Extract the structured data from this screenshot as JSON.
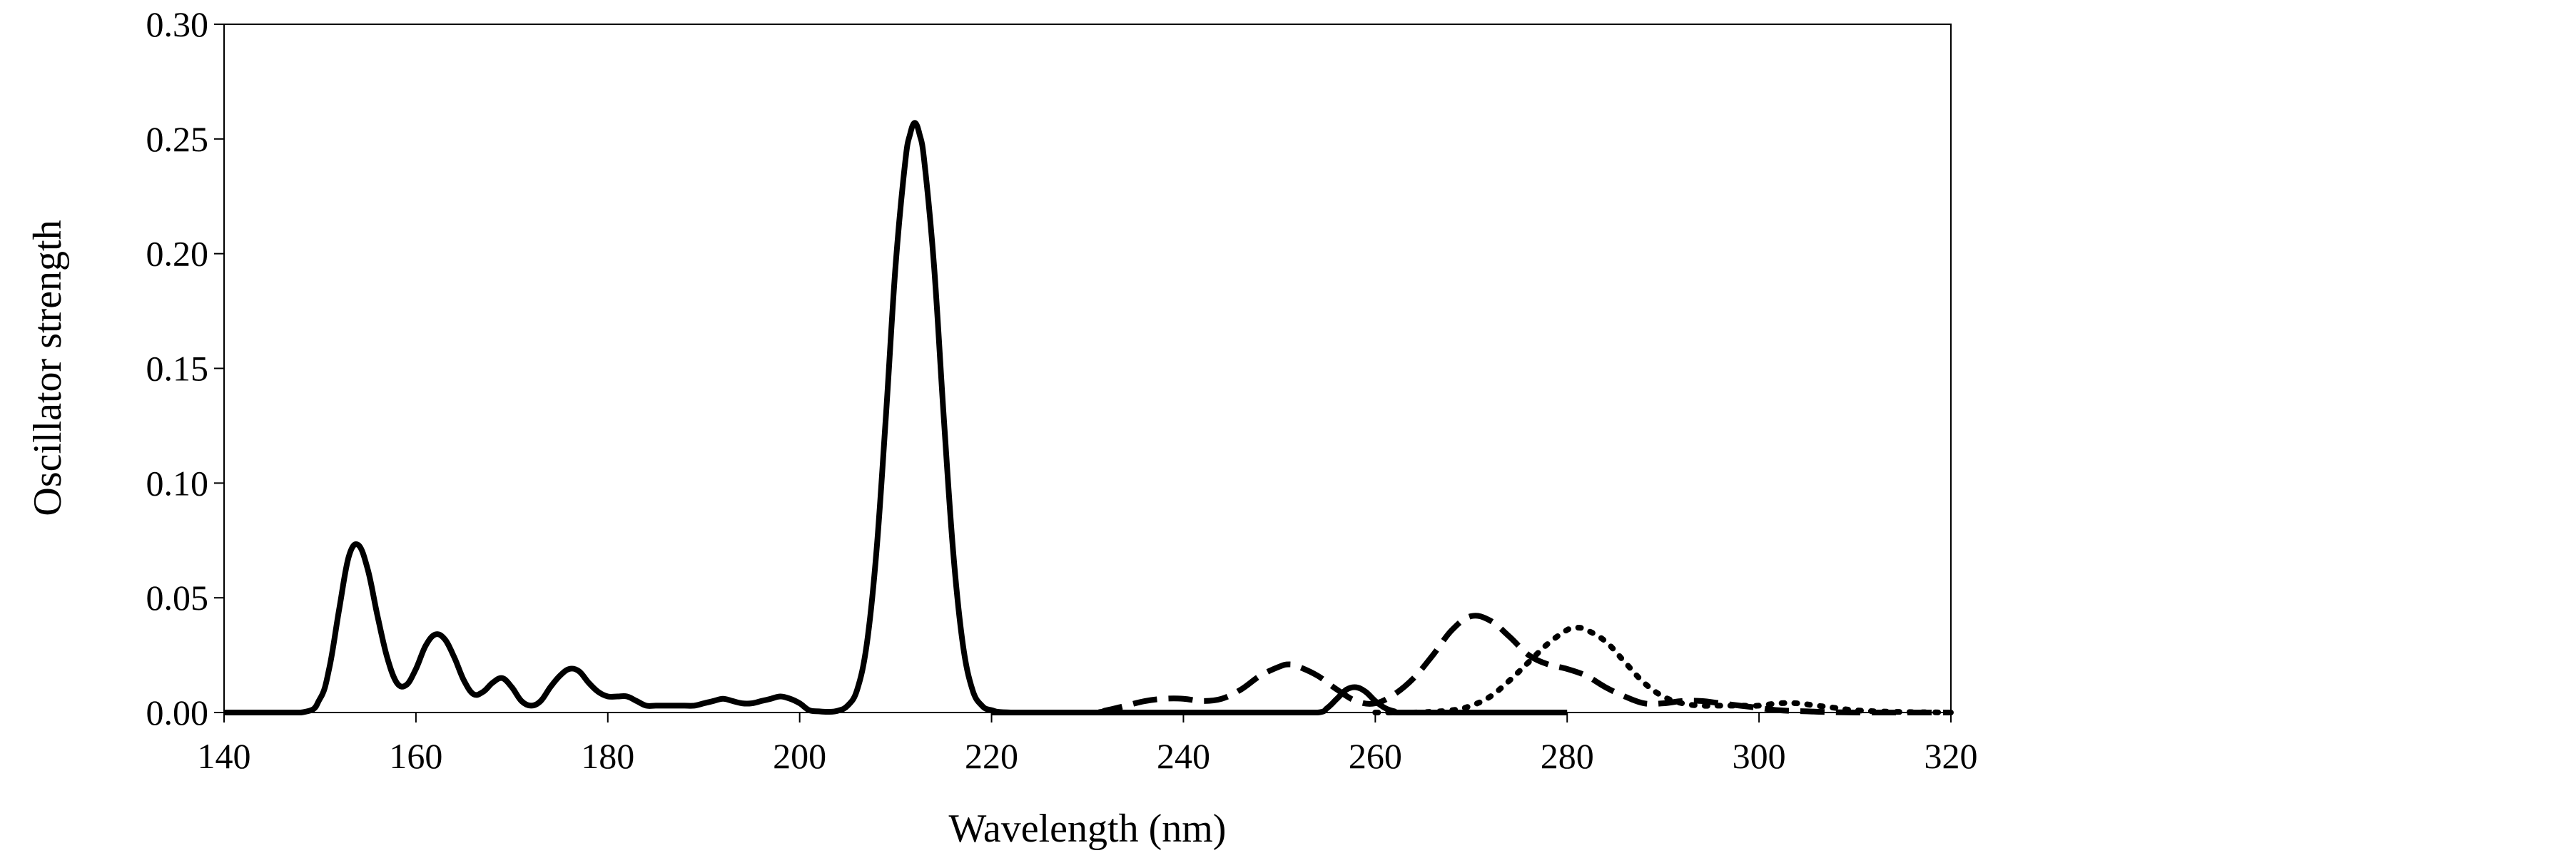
{
  "chart_data": {
    "type": "line",
    "title": "",
    "xlabel": "Wavelength (nm)",
    "ylabel": "Oscillator strength",
    "xlim": [
      140,
      320
    ],
    "ylim": [
      0,
      0.3
    ],
    "xticks": [
      140,
      160,
      180,
      200,
      220,
      240,
      260,
      280,
      300,
      320
    ],
    "yticks": [
      "0.00",
      "0.05",
      "0.10",
      "0.15",
      "0.20",
      "0.25",
      "0.30"
    ],
    "grid": false,
    "legend": "none",
    "series": [
      {
        "style": "solid",
        "color": "#000000",
        "x": [
          140,
          148,
          150,
          151,
          152,
          153,
          154,
          155,
          156,
          157,
          158,
          159,
          160,
          161,
          162,
          163,
          164,
          165,
          166,
          167,
          168,
          169,
          170,
          171,
          172,
          173,
          174,
          175,
          176,
          177,
          178,
          179,
          180,
          181,
          182,
          183,
          184,
          185,
          186,
          187,
          188,
          189,
          190,
          191,
          192,
          193,
          194,
          195,
          196,
          197,
          198,
          199,
          200,
          201,
          202,
          203,
          204,
          205,
          206,
          207,
          208,
          209,
          210,
          211,
          211.5,
          212,
          212.5,
          213,
          214,
          215,
          216,
          217,
          218,
          219,
          220,
          222,
          230,
          240,
          250,
          254,
          255,
          256,
          257,
          258,
          259,
          260,
          261,
          262,
          263,
          280
        ],
        "y": [
          0,
          0,
          0.006,
          0.02,
          0.045,
          0.068,
          0.073,
          0.062,
          0.042,
          0.024,
          0.013,
          0.012,
          0.019,
          0.029,
          0.034,
          0.032,
          0.024,
          0.014,
          0.008,
          0.009,
          0.013,
          0.015,
          0.011,
          0.005,
          0.003,
          0.005,
          0.011,
          0.016,
          0.019,
          0.018,
          0.013,
          0.009,
          0.007,
          0.007,
          0.007,
          0.005,
          0.003,
          0.003,
          0.003,
          0.003,
          0.003,
          0.003,
          0.004,
          0.005,
          0.006,
          0.005,
          0.004,
          0.004,
          0.005,
          0.006,
          0.007,
          0.006,
          0.004,
          0.001,
          0.0005,
          0.0003,
          0.0008,
          0.003,
          0.01,
          0.03,
          0.07,
          0.13,
          0.195,
          0.24,
          0.252,
          0.257,
          0.252,
          0.24,
          0.195,
          0.13,
          0.07,
          0.03,
          0.01,
          0.003,
          0.001,
          0,
          0,
          0,
          0,
          0,
          0.002,
          0.006,
          0.01,
          0.011,
          0.009,
          0.005,
          0.002,
          0.0005,
          0,
          0
        ]
      },
      {
        "style": "dashed",
        "color": "#000000",
        "x": [
          220,
          230,
          232,
          234,
          236,
          238,
          240,
          242,
          244,
          246,
          248,
          250,
          251,
          252,
          254,
          256,
          258,
          260,
          262,
          264,
          266,
          268,
          270,
          272,
          274,
          276,
          278,
          280,
          282,
          284,
          286,
          288,
          290,
          292,
          294,
          296,
          298,
          300,
          302,
          305,
          310,
          320
        ],
        "y": [
          0,
          0,
          0.001,
          0.003,
          0.005,
          0.006,
          0.006,
          0.005,
          0.006,
          0.01,
          0.016,
          0.02,
          0.021,
          0.02,
          0.016,
          0.01,
          0.005,
          0.004,
          0.008,
          0.015,
          0.025,
          0.036,
          0.042,
          0.04,
          0.033,
          0.025,
          0.021,
          0.019,
          0.016,
          0.011,
          0.007,
          0.004,
          0.004,
          0.005,
          0.005,
          0.004,
          0.003,
          0.002,
          0.001,
          0.0005,
          0,
          0
        ]
      },
      {
        "style": "dotted",
        "color": "#000000",
        "x": [
          260,
          264,
          268,
          270,
          272,
          274,
          276,
          278,
          280,
          281,
          282,
          284,
          286,
          288,
          290,
          292,
          294,
          296,
          298,
          300,
          302,
          304,
          306,
          308,
          310,
          314,
          320
        ],
        "y": [
          0,
          0,
          0.001,
          0.003,
          0.007,
          0.014,
          0.022,
          0.03,
          0.036,
          0.037,
          0.036,
          0.031,
          0.022,
          0.013,
          0.007,
          0.004,
          0.003,
          0.003,
          0.003,
          0.003,
          0.004,
          0.004,
          0.003,
          0.002,
          0.001,
          0.0003,
          0
        ]
      }
    ]
  }
}
